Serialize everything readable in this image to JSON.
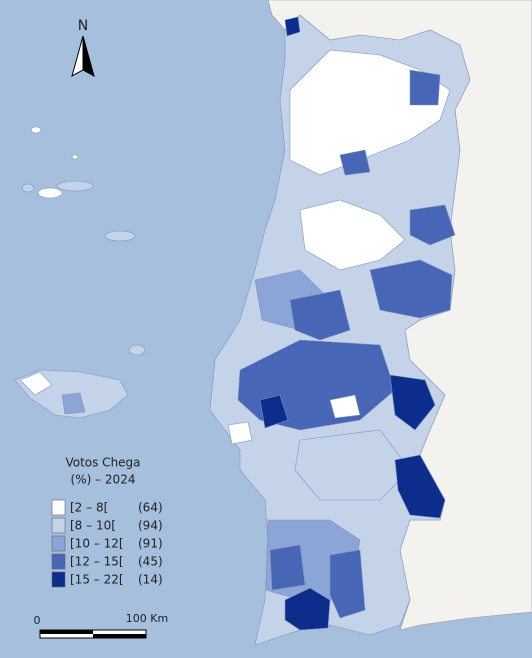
{
  "north": "N",
  "legend": {
    "title": "Votos Chega",
    "subtitle": "(%) – 2024",
    "items": [
      {
        "label": "[2 – 8[",
        "count": "(64)",
        "color": "#ffffff"
      },
      {
        "label": "[8 – 10[",
        "count": "(94)",
        "color": "#c5d3e9"
      },
      {
        "label": "[10 – 12[",
        "count": "(91)",
        "color": "#8aa5d6"
      },
      {
        "label": "[12 – 15[",
        "count": "(45)",
        "color": "#4866b6"
      },
      {
        "label": "[15 – 22[",
        "count": "(14)",
        "color": "#0d2d8c"
      }
    ]
  },
  "scale": {
    "start": "0",
    "end": "100 Km"
  }
}
